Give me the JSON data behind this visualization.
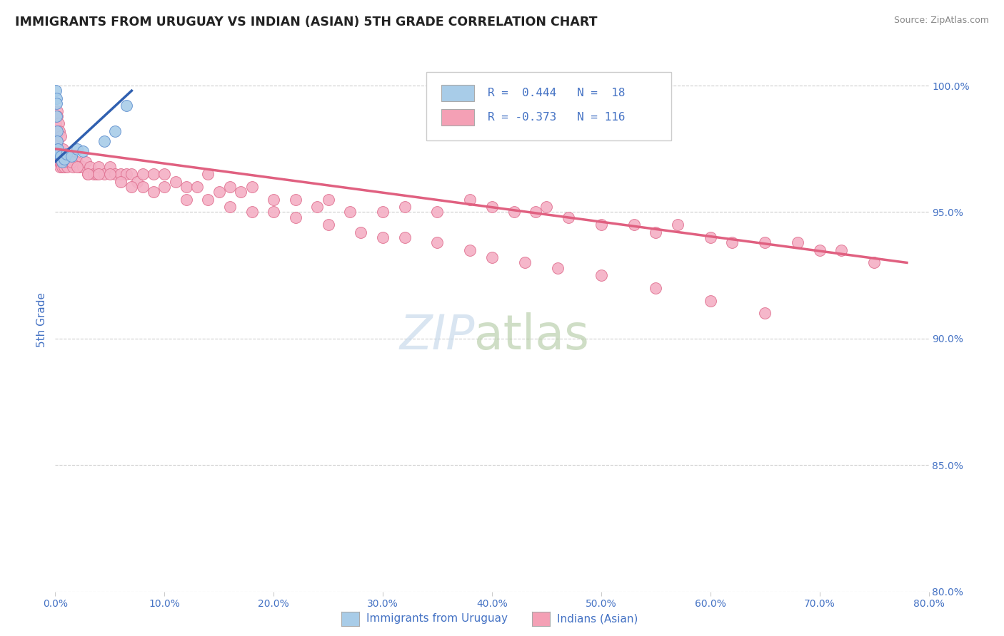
{
  "title": "IMMIGRANTS FROM URUGUAY VS INDIAN (ASIAN) 5TH GRADE CORRELATION CHART",
  "source": "Source: ZipAtlas.com",
  "ylabel": "5th Grade",
  "xlim": [
    0.0,
    80.0
  ],
  "ylim": [
    80.0,
    101.5
  ],
  "xticks": [
    0.0,
    10.0,
    20.0,
    30.0,
    40.0,
    50.0,
    60.0,
    70.0,
    80.0
  ],
  "yticks_right": [
    80.0,
    85.0,
    90.0,
    95.0,
    100.0
  ],
  "grid_color": "#cccccc",
  "legend_color1": "#a8cce8",
  "legend_color2": "#f4a0b5",
  "trendline_color1": "#3060b0",
  "trendline_color2": "#e06080",
  "scatter_color1": "#a8cce8",
  "scatter_color2": "#f4b0c5",
  "scatter_edge1": "#6090d0",
  "scatter_edge2": "#e07090",
  "title_color": "#222222",
  "tick_label_color": "#4472c4",
  "ylabel_color": "#4472c4",
  "source_color": "#888888",
  "xlabel_label1": "Immigrants from Uruguay",
  "xlabel_label2": "Indians (Asian)",
  "watermark_zip_color": "#c0d4e8",
  "watermark_atlas_color": "#b0c8a0",
  "uruguay_x": [
    0.05,
    0.08,
    0.1,
    0.12,
    0.15,
    0.18,
    0.25,
    0.3,
    0.5,
    0.6,
    0.8,
    1.0,
    1.5,
    2.0,
    2.5,
    4.5,
    5.5,
    6.5
  ],
  "uruguay_y": [
    99.8,
    99.5,
    99.3,
    98.8,
    98.2,
    97.8,
    97.5,
    97.3,
    97.2,
    97.0,
    97.1,
    97.3,
    97.2,
    97.5,
    97.4,
    97.8,
    98.2,
    99.2
  ],
  "indian_x": [
    0.05,
    0.08,
    0.1,
    0.12,
    0.15,
    0.18,
    0.2,
    0.22,
    0.25,
    0.3,
    0.32,
    0.35,
    0.4,
    0.42,
    0.45,
    0.5,
    0.55,
    0.6,
    0.65,
    0.7,
    0.8,
    0.9,
    1.0,
    1.1,
    1.2,
    1.3,
    1.5,
    1.6,
    1.8,
    2.0,
    2.2,
    2.5,
    2.8,
    3.0,
    3.2,
    3.5,
    3.8,
    4.0,
    4.5,
    5.0,
    5.5,
    6.0,
    6.5,
    7.0,
    7.5,
    8.0,
    9.0,
    10.0,
    11.0,
    12.0,
    13.0,
    14.0,
    15.0,
    16.0,
    17.0,
    18.0,
    20.0,
    22.0,
    24.0,
    25.0,
    27.0,
    30.0,
    32.0,
    35.0,
    38.0,
    40.0,
    42.0,
    44.0,
    45.0,
    47.0,
    50.0,
    53.0,
    55.0,
    57.0,
    60.0,
    62.0,
    65.0,
    68.0,
    70.0,
    72.0,
    75.0,
    0.15,
    0.2,
    0.3,
    0.4,
    0.5,
    0.7,
    1.0,
    1.5,
    2.0,
    3.0,
    4.0,
    5.0,
    6.0,
    7.0,
    8.0,
    9.0,
    10.0,
    12.0,
    14.0,
    16.0,
    18.0,
    20.0,
    22.0,
    25.0,
    28.0,
    30.0,
    32.0,
    35.0,
    38.0,
    40.0,
    43.0,
    46.0,
    50.0,
    55.0,
    60.0,
    65.0
  ],
  "indian_y": [
    98.5,
    98.2,
    98.0,
    97.8,
    97.5,
    97.8,
    97.5,
    97.2,
    97.5,
    97.3,
    97.0,
    97.2,
    97.0,
    96.8,
    97.0,
    97.2,
    97.0,
    96.8,
    97.0,
    97.2,
    96.8,
    97.0,
    97.0,
    96.8,
    97.0,
    97.2,
    97.0,
    96.8,
    97.0,
    97.0,
    96.8,
    96.8,
    97.0,
    96.5,
    96.8,
    96.5,
    96.5,
    96.8,
    96.5,
    96.8,
    96.5,
    96.5,
    96.5,
    96.5,
    96.2,
    96.5,
    96.5,
    96.5,
    96.2,
    96.0,
    96.0,
    96.5,
    95.8,
    96.0,
    95.8,
    96.0,
    95.5,
    95.5,
    95.2,
    95.5,
    95.0,
    95.0,
    95.2,
    95.0,
    95.5,
    95.2,
    95.0,
    95.0,
    95.2,
    94.8,
    94.5,
    94.5,
    94.2,
    94.5,
    94.0,
    93.8,
    93.8,
    93.8,
    93.5,
    93.5,
    93.0,
    99.0,
    98.8,
    98.5,
    98.2,
    98.0,
    97.5,
    97.2,
    97.0,
    96.8,
    96.5,
    96.5,
    96.5,
    96.2,
    96.0,
    96.0,
    95.8,
    96.0,
    95.5,
    95.5,
    95.2,
    95.0,
    95.0,
    94.8,
    94.5,
    94.2,
    94.0,
    94.0,
    93.8,
    93.5,
    93.2,
    93.0,
    92.8,
    92.5,
    92.0,
    91.5,
    91.0
  ]
}
